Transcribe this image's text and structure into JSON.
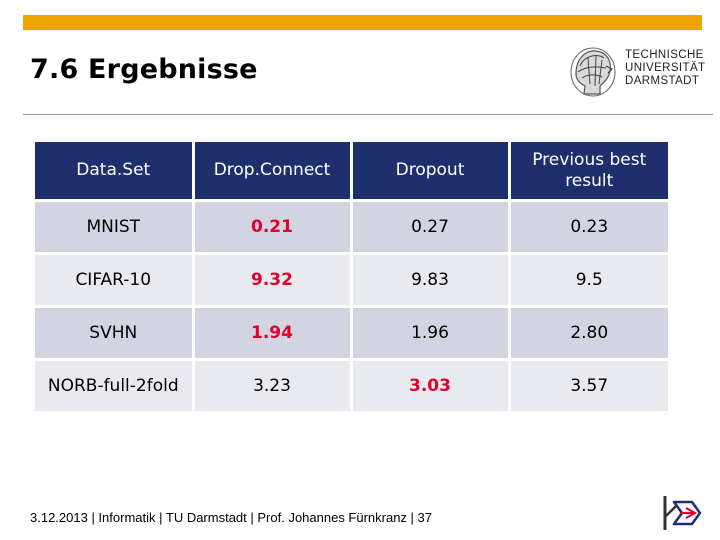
{
  "slide": {
    "title": "7.6 Ergebnisse"
  },
  "logo": {
    "lines": [
      "TECHNISCHE",
      "UNIVERSITÄT",
      "DARMSTADT"
    ]
  },
  "table": {
    "headers": [
      "Data.Set",
      "Drop.Connect",
      "Dropout",
      "Previous best result"
    ],
    "rows": [
      {
        "dataset": "MNIST",
        "dropconnect": "0.21",
        "dropout": "0.27",
        "previous": "0.23",
        "best": "dropconnect"
      },
      {
        "dataset": "CIFAR-10",
        "dropconnect": "9.32",
        "dropout": "9.83",
        "previous": "9.5",
        "best": "dropconnect"
      },
      {
        "dataset": "SVHN",
        "dropconnect": "1.94",
        "dropout": "1.96",
        "previous": "2.80",
        "best": "dropconnect"
      },
      {
        "dataset": "NORB-full-2fold",
        "dropconnect": "3.23",
        "dropout": "3.03",
        "previous": "3.57",
        "best": "dropout"
      }
    ],
    "highlight_color": "#e0002c",
    "header_color": "#1f2f6e"
  },
  "footer": {
    "text": "3.12.2013 | Informatik | TU Darmstadt | Prof. Johannes Fürnkranz | 37"
  },
  "colors": {
    "accent_bar": "#f0a400"
  }
}
